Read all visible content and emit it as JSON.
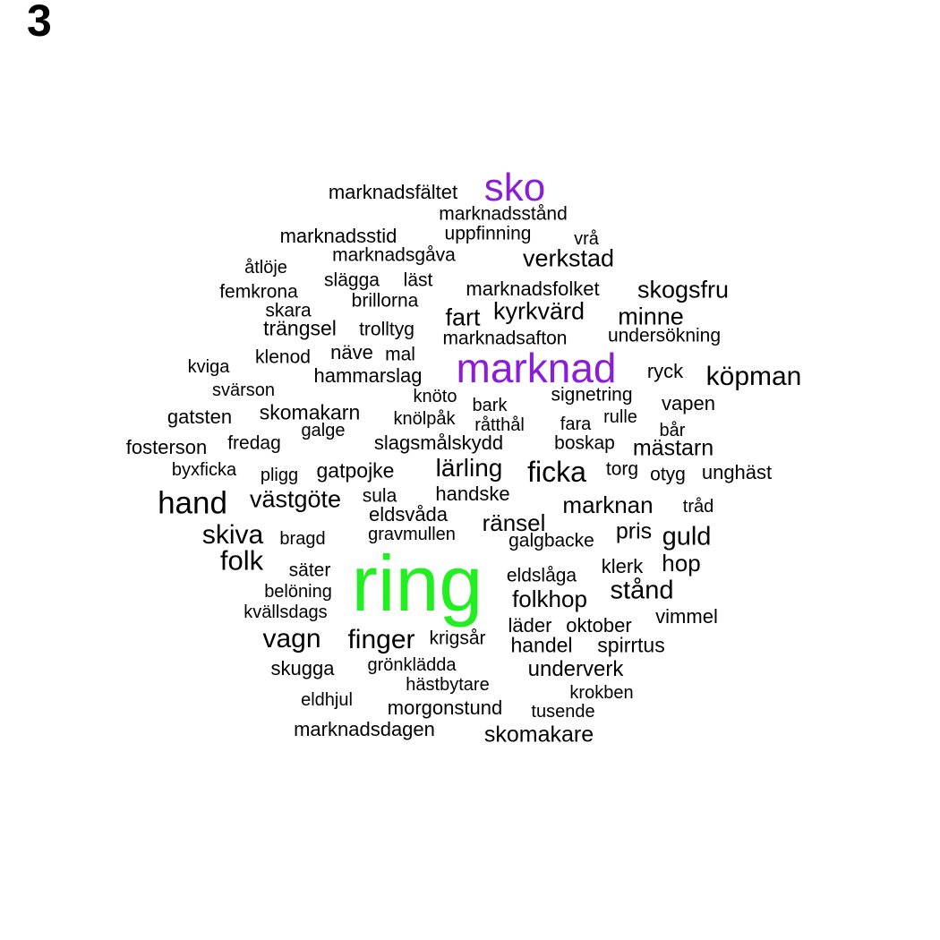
{
  "panel_label": "3",
  "colors": {
    "tier_default": "#000000",
    "tier_mid": "#8a1ed6",
    "tier_top": "#22ee22"
  },
  "words": [
    {
      "text": "ring",
      "weight": 1.0,
      "color": "#22ee22"
    },
    {
      "text": "marknad",
      "weight": 0.62,
      "color": "#8a1ed6"
    },
    {
      "text": "sko",
      "weight": 0.55,
      "color": "#8a1ed6"
    },
    {
      "text": "hand",
      "weight": 0.38,
      "color": "#000000"
    },
    {
      "text": "ficka",
      "weight": 0.35,
      "color": "#000000"
    },
    {
      "text": "köpman",
      "weight": 0.33,
      "color": "#000000"
    },
    {
      "text": "finger",
      "weight": 0.33,
      "color": "#000000"
    },
    {
      "text": "vagn",
      "weight": 0.33,
      "color": "#000000"
    },
    {
      "text": "folk",
      "weight": 0.33,
      "color": "#000000"
    },
    {
      "text": "skiva",
      "weight": 0.31,
      "color": "#000000"
    },
    {
      "text": "stånd",
      "weight": 0.31,
      "color": "#000000"
    },
    {
      "text": "guld",
      "weight": 0.31,
      "color": "#000000"
    },
    {
      "text": "verkstad",
      "weight": 0.29,
      "color": "#000000"
    },
    {
      "text": "skogsfru",
      "weight": 0.29,
      "color": "#000000"
    },
    {
      "text": "lärling",
      "weight": 0.29,
      "color": "#000000"
    },
    {
      "text": "kyrkvärd",
      "weight": 0.29,
      "color": "#000000"
    },
    {
      "text": "fart",
      "weight": 0.28,
      "color": "#000000"
    },
    {
      "text": "minne",
      "weight": 0.28,
      "color": "#000000"
    },
    {
      "text": "västgöte",
      "weight": 0.28,
      "color": "#000000"
    },
    {
      "text": "marknan",
      "weight": 0.27,
      "color": "#000000"
    },
    {
      "text": "folkhop",
      "weight": 0.27,
      "color": "#000000"
    },
    {
      "text": "ränsel",
      "weight": 0.27,
      "color": "#000000"
    },
    {
      "text": "skomakare",
      "weight": 0.26,
      "color": "#000000"
    },
    {
      "text": "hop",
      "weight": 0.27,
      "color": "#000000"
    },
    {
      "text": "pris",
      "weight": 0.26,
      "color": "#000000"
    },
    {
      "text": "mästarn",
      "weight": 0.26,
      "color": "#000000"
    },
    {
      "text": "underverk",
      "weight": 0.25,
      "color": "#000000"
    },
    {
      "text": "skomakarn",
      "weight": 0.25,
      "color": "#000000"
    },
    {
      "text": "handel",
      "weight": 0.24,
      "color": "#000000"
    },
    {
      "text": "spirrtus",
      "weight": 0.24,
      "color": "#000000"
    },
    {
      "text": "marknadsstid",
      "weight": 0.24,
      "color": "#000000"
    },
    {
      "text": "marknadsfältet",
      "weight": 0.23,
      "color": "#000000"
    },
    {
      "text": "marknadsfolket",
      "weight": 0.23,
      "color": "#000000"
    },
    {
      "text": "hammarslag",
      "weight": 0.23,
      "color": "#000000"
    },
    {
      "text": "trängsel",
      "weight": 0.24,
      "color": "#000000"
    },
    {
      "text": "gatpojke",
      "weight": 0.24,
      "color": "#000000"
    },
    {
      "text": "slagsmålskydd",
      "weight": 0.23,
      "color": "#000000"
    },
    {
      "text": "handske",
      "weight": 0.23,
      "color": "#000000"
    },
    {
      "text": "eldsvåda",
      "weight": 0.23,
      "color": "#000000"
    },
    {
      "text": "unghäst",
      "weight": 0.23,
      "color": "#000000"
    },
    {
      "text": "gatsten",
      "weight": 0.23,
      "color": "#000000"
    },
    {
      "text": "fosterson",
      "weight": 0.23,
      "color": "#000000"
    },
    {
      "text": "ryck",
      "weight": 0.23,
      "color": "#000000"
    },
    {
      "text": "vapen",
      "weight": 0.23,
      "color": "#000000"
    },
    {
      "text": "skugga",
      "weight": 0.23,
      "color": "#000000"
    },
    {
      "text": "morgonstund",
      "weight": 0.23,
      "color": "#000000"
    },
    {
      "text": "marknadsdagen",
      "weight": 0.23,
      "color": "#000000"
    },
    {
      "text": "vimmel",
      "weight": 0.23,
      "color": "#000000"
    },
    {
      "text": "klerk",
      "weight": 0.23,
      "color": "#000000"
    },
    {
      "text": "läder",
      "weight": 0.23,
      "color": "#000000"
    },
    {
      "text": "oktober",
      "weight": 0.23,
      "color": "#000000"
    },
    {
      "text": "krigsår",
      "weight": 0.22,
      "color": "#000000"
    },
    {
      "text": "eldslåga",
      "weight": 0.22,
      "color": "#000000"
    },
    {
      "text": "galgbacke",
      "weight": 0.22,
      "color": "#000000"
    },
    {
      "text": "marknadsafton",
      "weight": 0.22,
      "color": "#000000"
    },
    {
      "text": "marknadsstånd",
      "weight": 0.22,
      "color": "#000000"
    },
    {
      "text": "uppfinning",
      "weight": 0.22,
      "color": "#000000"
    },
    {
      "text": "marknadsgåva",
      "weight": 0.22,
      "color": "#000000"
    },
    {
      "text": "undersökning",
      "weight": 0.22,
      "color": "#000000"
    },
    {
      "text": "signetring",
      "weight": 0.22,
      "color": "#000000"
    },
    {
      "text": "näve",
      "weight": 0.22,
      "color": "#000000"
    },
    {
      "text": "mal",
      "weight": 0.22,
      "color": "#000000"
    },
    {
      "text": "klenod",
      "weight": 0.22,
      "color": "#000000"
    },
    {
      "text": "femkrona",
      "weight": 0.22,
      "color": "#000000"
    },
    {
      "text": "slägga",
      "weight": 0.22,
      "color": "#000000"
    },
    {
      "text": "läst",
      "weight": 0.22,
      "color": "#000000"
    },
    {
      "text": "brillorna",
      "weight": 0.22,
      "color": "#000000"
    },
    {
      "text": "skara",
      "weight": 0.22,
      "color": "#000000"
    },
    {
      "text": "trolltyg",
      "weight": 0.22,
      "color": "#000000"
    },
    {
      "text": "fredag",
      "weight": 0.22,
      "color": "#000000"
    },
    {
      "text": "boskap",
      "weight": 0.22,
      "color": "#000000"
    },
    {
      "text": "torg",
      "weight": 0.22,
      "color": "#000000"
    },
    {
      "text": "otyg",
      "weight": 0.22,
      "color": "#000000"
    },
    {
      "text": "sula",
      "weight": 0.22,
      "color": "#000000"
    },
    {
      "text": "tråd",
      "weight": 0.21,
      "color": "#000000"
    },
    {
      "text": "bragd",
      "weight": 0.21,
      "color": "#000000"
    },
    {
      "text": "gravmullen",
      "weight": 0.21,
      "color": "#000000"
    },
    {
      "text": "säter",
      "weight": 0.21,
      "color": "#000000"
    },
    {
      "text": "belöning",
      "weight": 0.21,
      "color": "#000000"
    },
    {
      "text": "kvällsdags",
      "weight": 0.21,
      "color": "#000000"
    },
    {
      "text": "grönklädda",
      "weight": 0.21,
      "color": "#000000"
    },
    {
      "text": "hästbytare",
      "weight": 0.21,
      "color": "#000000"
    },
    {
      "text": "eldhjul",
      "weight": 0.21,
      "color": "#000000"
    },
    {
      "text": "tusende",
      "weight": 0.21,
      "color": "#000000"
    },
    {
      "text": "krokben",
      "weight": 0.21,
      "color": "#000000"
    },
    {
      "text": "vrå",
      "weight": 0.21,
      "color": "#000000"
    },
    {
      "text": "åtlöje",
      "weight": 0.21,
      "color": "#000000"
    },
    {
      "text": "kviga",
      "weight": 0.21,
      "color": "#000000"
    },
    {
      "text": "svärson",
      "weight": 0.21,
      "color": "#000000"
    },
    {
      "text": "knöto",
      "weight": 0.21,
      "color": "#000000"
    },
    {
      "text": "bark",
      "weight": 0.21,
      "color": "#000000"
    },
    {
      "text": "knölpåk",
      "weight": 0.21,
      "color": "#000000"
    },
    {
      "text": "råtthål",
      "weight": 0.21,
      "color": "#000000"
    },
    {
      "text": "fara",
      "weight": 0.21,
      "color": "#000000"
    },
    {
      "text": "rulle",
      "weight": 0.21,
      "color": "#000000"
    },
    {
      "text": "bår",
      "weight": 0.21,
      "color": "#000000"
    },
    {
      "text": "galge",
      "weight": 0.21,
      "color": "#000000"
    },
    {
      "text": "byxficka",
      "weight": 0.21,
      "color": "#000000"
    },
    {
      "text": "pligg",
      "weight": 0.21,
      "color": "#000000"
    }
  ]
}
